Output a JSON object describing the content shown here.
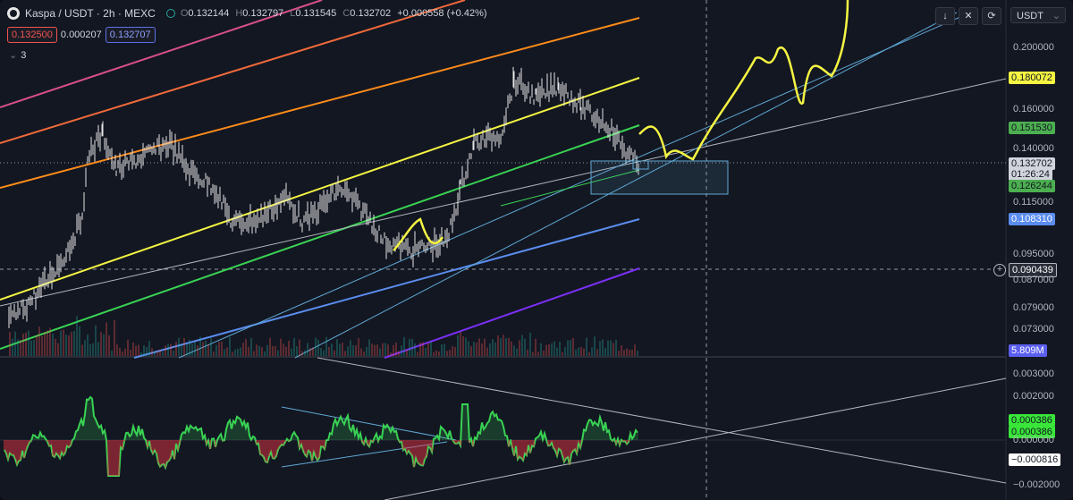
{
  "header": {
    "symbol": "Kaspa / USDT · 2h · MEXC",
    "ohlc": [
      {
        "k": "O",
        "v": "0.132144"
      },
      {
        "k": "H",
        "v": "0.132797"
      },
      {
        "k": "L",
        "v": "0.131545"
      },
      {
        "k": "C",
        "v": "0.132702"
      }
    ],
    "change": "+0.000558 (+0.42%)",
    "sell_price": "0.132500",
    "spread": "0.000207",
    "buy_price": "0.132707",
    "indicator_count": "3"
  },
  "toolbar": {
    "btn_down": "↓",
    "btn_collapse": "✕",
    "btn_reset": "⟳",
    "currency": "USDT"
  },
  "price_axis": {
    "ticks": [
      "0.200000",
      "0.160000",
      "0.140000",
      "0.115000",
      "0.095000",
      "0.087000",
      "0.079000",
      "0.073000"
    ],
    "tags": [
      {
        "label": "0.180072",
        "color": "#f5f542"
      },
      {
        "label": "0.151530",
        "color": "#4caf50"
      },
      {
        "label": "0.132702",
        "color": "#d1d4dc"
      },
      {
        "label": "01:26:24",
        "color": "#d1d4dc"
      },
      {
        "label": "0.126244",
        "color": "#4caf50"
      },
      {
        "label": "0.108310",
        "color": "#5b8def"
      },
      {
        "label": "0.090439",
        "color": "#2a2e39"
      },
      {
        "label": "5.809M",
        "color": "#5b5fef"
      }
    ]
  },
  "osc_axis": {
    "ticks": [
      "0.003000",
      "0.002000",
      "0.000000",
      "−0.002000"
    ],
    "tags": [
      {
        "label": "0.000386",
        "color": "#39e639"
      },
      {
        "label": "0.000386",
        "color": "#39e639"
      },
      {
        "label": "−0.000816",
        "color": "#ffffff"
      }
    ]
  },
  "colors": {
    "bg": "#131722",
    "candle": "#e6e6e6",
    "yellow": "#f5f542",
    "green": "#39d353",
    "blue": "#5b8def",
    "purple": "#7b2ff7",
    "orange": "#ff8c1a",
    "red": "#f23645"
  }
}
